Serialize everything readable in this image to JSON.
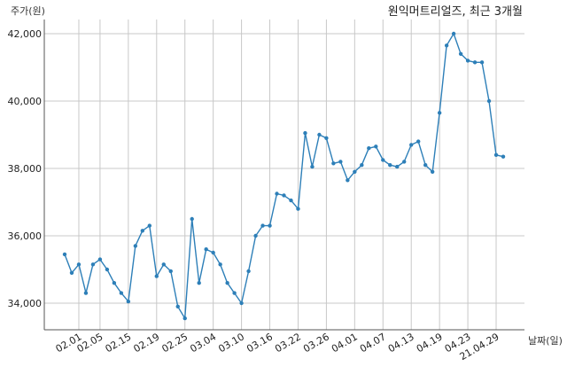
{
  "chart_data": {
    "type": "line",
    "title": "원익머트리얼즈, 최근 3개월",
    "ylabel": "주가(원)",
    "xlabel": "날짜(일)",
    "ylim": [
      33200,
      42600
    ],
    "yticks": [
      34000,
      36000,
      38000,
      40000,
      42000
    ],
    "ytick_labels": [
      "34,000",
      "36,000",
      "38,000",
      "40,000",
      "42,000"
    ],
    "xtick_labels": [
      "02.01",
      "02.05",
      "02.15",
      "02.19",
      "02.25",
      "03.04",
      "03.10",
      "03.16",
      "03.22",
      "03.26",
      "04.01",
      "04.07",
      "04.13",
      "04.19",
      "04.23",
      "21.04.29"
    ],
    "xtick_indices": [
      2,
      5,
      9,
      13,
      17,
      21,
      25,
      29,
      33,
      37,
      41,
      45,
      49,
      53,
      57,
      61
    ],
    "grid": true,
    "colors": {
      "line": "#2d7fb8",
      "grid": "#c8c8c8",
      "axis": "#555555"
    },
    "series": [
      {
        "values": [
          35450,
          34900,
          35150,
          34300,
          35150,
          35300,
          35000,
          34600,
          34300,
          34050,
          35700,
          36150,
          36300,
          34800,
          35150,
          34950,
          33900,
          33550,
          36500,
          34600,
          35600,
          35500,
          35150,
          34600,
          34300,
          34000,
          34950,
          36000,
          36300,
          36300,
          37250,
          37200,
          37050,
          36800,
          39050,
          38050,
          39000,
          38900,
          38150,
          38200,
          37650,
          37900,
          38100,
          38600,
          38650,
          38250,
          38100,
          38050,
          38200,
          38700,
          38800,
          38100,
          37900,
          39650,
          41650,
          42000,
          41400,
          41200,
          41150,
          41150,
          40000,
          38400,
          38350
        ]
      }
    ]
  }
}
